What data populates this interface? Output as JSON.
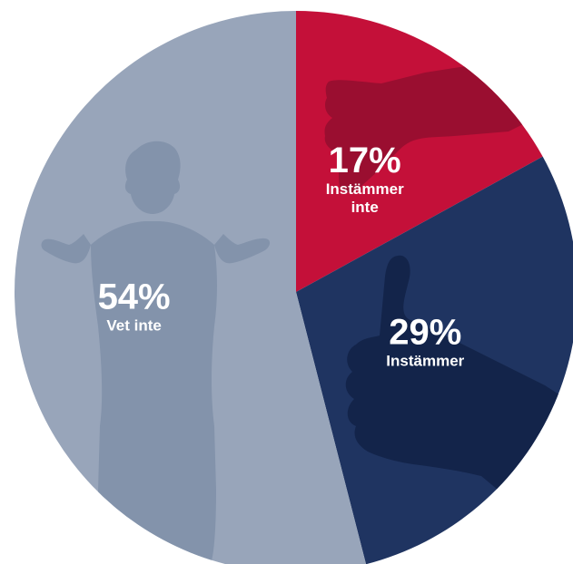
{
  "chart_data": {
    "type": "pie",
    "slices": [
      {
        "value": 17,
        "value_label": "17%",
        "label_lines": [
          "Instämmer",
          "inte"
        ],
        "color": "#c41039",
        "icon": "thumbs-down-icon",
        "icon_color": "#9a0e30"
      },
      {
        "value": 29,
        "value_label": "29%",
        "label_lines": [
          "Instämmer"
        ],
        "color": "#1f3461",
        "icon": "thumbs-up-icon",
        "icon_color": "#13244a"
      },
      {
        "value": 54,
        "value_label": "54%",
        "label_lines": [
          "Vet inte"
        ],
        "color": "#98a5ba",
        "icon": "shrugging-person-icon",
        "icon_color": "#8393ab"
      }
    ],
    "start_angle_deg": 0,
    "direction": "clockwise"
  }
}
